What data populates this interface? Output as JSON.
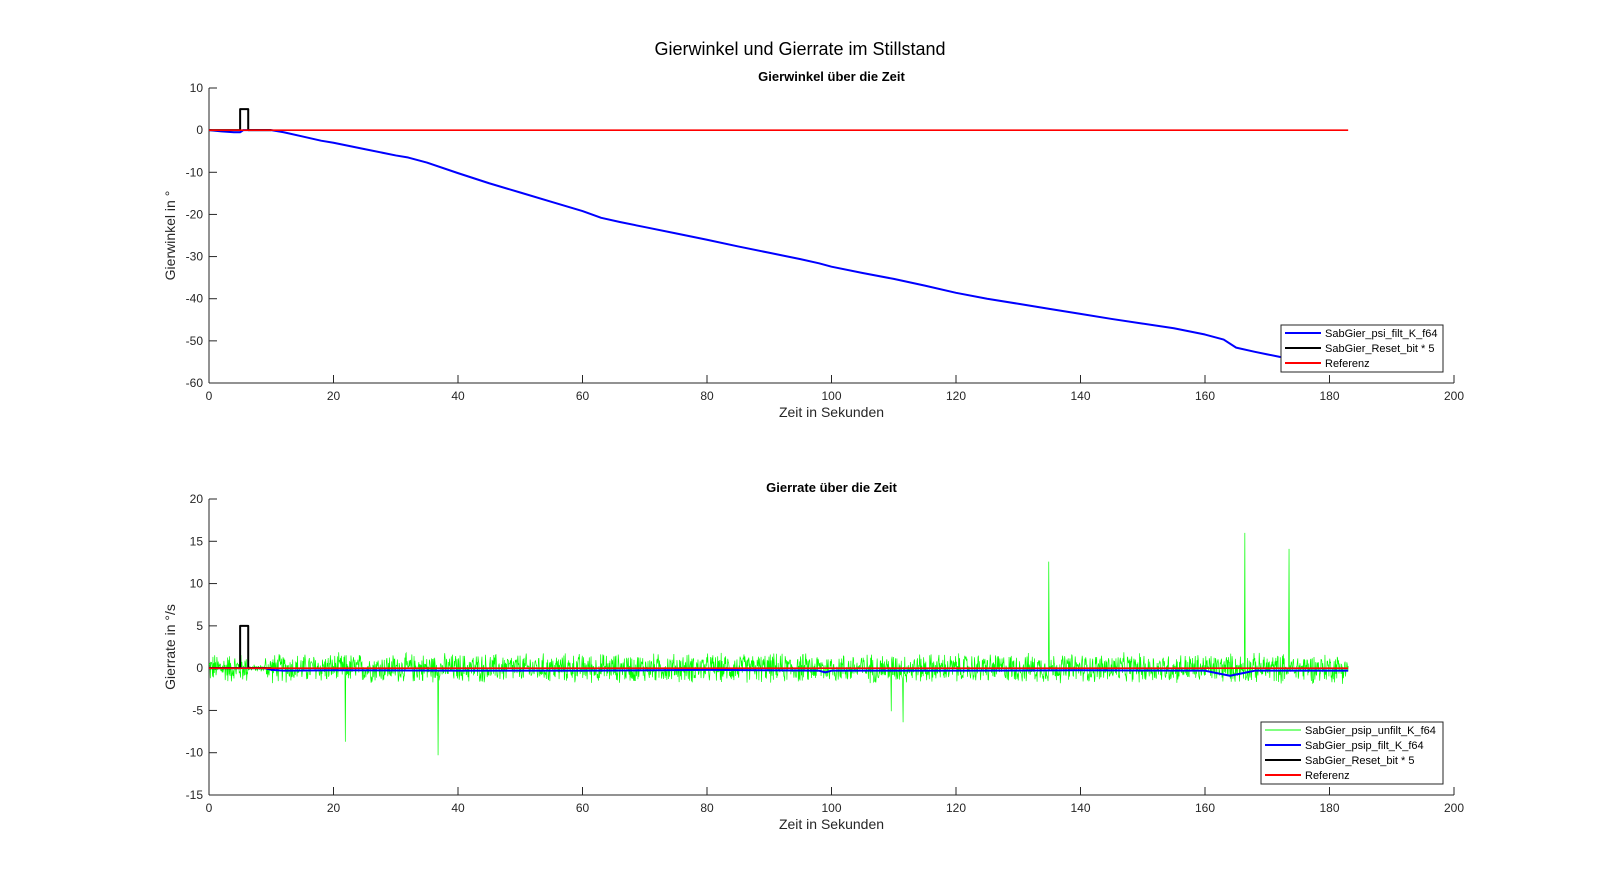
{
  "figure": {
    "title": "Gierwinkel und Gierrate im Stillstand"
  },
  "chart_data": [
    {
      "type": "line",
      "title": "Gierwinkel über die Zeit",
      "xlabel": "Zeit in Sekunden",
      "ylabel": "Gierwinkel in °",
      "xlim": [
        0,
        200
      ],
      "ylim": [
        -60,
        10
      ],
      "xticks": [
        0,
        20,
        40,
        60,
        80,
        100,
        120,
        140,
        160,
        180,
        200
      ],
      "yticks": [
        -60,
        -50,
        -40,
        -30,
        -20,
        -10,
        0,
        10
      ],
      "legend_position": "bottom-right",
      "series": [
        {
          "name": "SabGier_psi_filt_K_f64",
          "color": "#0000ff",
          "x": [
            0,
            2,
            4,
            5,
            5.5,
            6,
            8,
            10,
            12,
            15,
            18,
            20,
            25,
            30,
            32,
            35,
            40,
            45,
            50,
            55,
            60,
            63,
            66,
            70,
            75,
            80,
            85,
            90,
            95,
            98,
            100,
            105,
            110,
            115,
            120,
            125,
            130,
            135,
            140,
            145,
            150,
            155,
            160,
            163,
            165,
            168,
            170,
            172,
            173
          ],
          "y": [
            0,
            -0.3,
            -0.5,
            -0.5,
            0,
            0,
            0,
            0,
            -0.5,
            -1.5,
            -2.5,
            -3,
            -4.5,
            -6,
            -6.5,
            -7.7,
            -10.2,
            -12.6,
            -14.8,
            -17,
            -19.2,
            -20.8,
            -21.8,
            -23,
            -24.5,
            -26,
            -27.6,
            -29.1,
            -30.6,
            -31.6,
            -32.4,
            -33.9,
            -35.3,
            -36.9,
            -38.6,
            -40,
            -41.2,
            -42.4,
            -43.6,
            -44.8,
            -45.9,
            -47,
            -48.5,
            -49.7,
            -51.6,
            -52.6,
            -53.2,
            -53.8,
            -54.0
          ]
        },
        {
          "name": "SabGier_Reset_bit * 5",
          "color": "#000000",
          "x": [
            0,
            5.0,
            5.0,
            6.3,
            6.3,
            10
          ],
          "y": [
            0,
            0,
            5,
            5,
            0,
            0
          ]
        },
        {
          "name": "Referenz",
          "color": "#ff0000",
          "x": [
            0,
            183
          ],
          "y": [
            0,
            0
          ]
        }
      ]
    },
    {
      "type": "line",
      "title": "Gierrate über die Zeit",
      "xlabel": "Zeit in Sekunden",
      "ylabel": "Gierrate in °/s",
      "xlim": [
        0,
        200
      ],
      "ylim": [
        -15,
        20
      ],
      "xticks": [
        0,
        20,
        40,
        60,
        80,
        100,
        120,
        140,
        160,
        180,
        200
      ],
      "yticks": [
        -15,
        -10,
        -5,
        0,
        5,
        10,
        15,
        20
      ],
      "legend_position": "bottom-right",
      "series": [
        {
          "name": "SabGier_psip_unfilt_K_f64",
          "color": "#00ff00",
          "noise_band": {
            "x_start": 0,
            "x_end": 183,
            "center": 0,
            "amplitude": 1.5
          },
          "spikes": [
            {
              "x": 21.9,
              "y": -8.7
            },
            {
              "x": 36.8,
              "y": -10.3
            },
            {
              "x": 109.6,
              "y": -5.1
            },
            {
              "x": 111.5,
              "y": -6.4
            },
            {
              "x": 134.9,
              "y": 12.6
            },
            {
              "x": 166.4,
              "y": 16.0
            },
            {
              "x": 173.5,
              "y": 14.1
            }
          ]
        },
        {
          "name": "SabGier_psip_filt_K_f64",
          "color": "#0000ff",
          "x": [
            0,
            5,
            6,
            9,
            10,
            12,
            20,
            40,
            60,
            80,
            98,
            99,
            100,
            120,
            140,
            160,
            162,
            164,
            166,
            168,
            180,
            183
          ],
          "y": [
            0,
            0,
            0,
            0,
            -0.2,
            -0.3,
            -0.25,
            -0.3,
            -0.3,
            -0.2,
            -0.3,
            -0.5,
            -0.3,
            -0.3,
            -0.25,
            -0.3,
            -0.6,
            -0.9,
            -0.6,
            -0.3,
            -0.3,
            -0.3
          ]
        },
        {
          "name": "SabGier_Reset_bit * 5",
          "color": "#000000",
          "x": [
            0,
            5.0,
            5.0,
            6.3,
            6.3,
            10
          ],
          "y": [
            0,
            0,
            5,
            5,
            0,
            0
          ]
        },
        {
          "name": "Referenz",
          "color": "#ff0000",
          "x": [
            0,
            183
          ],
          "y": [
            0,
            0
          ]
        }
      ]
    }
  ]
}
